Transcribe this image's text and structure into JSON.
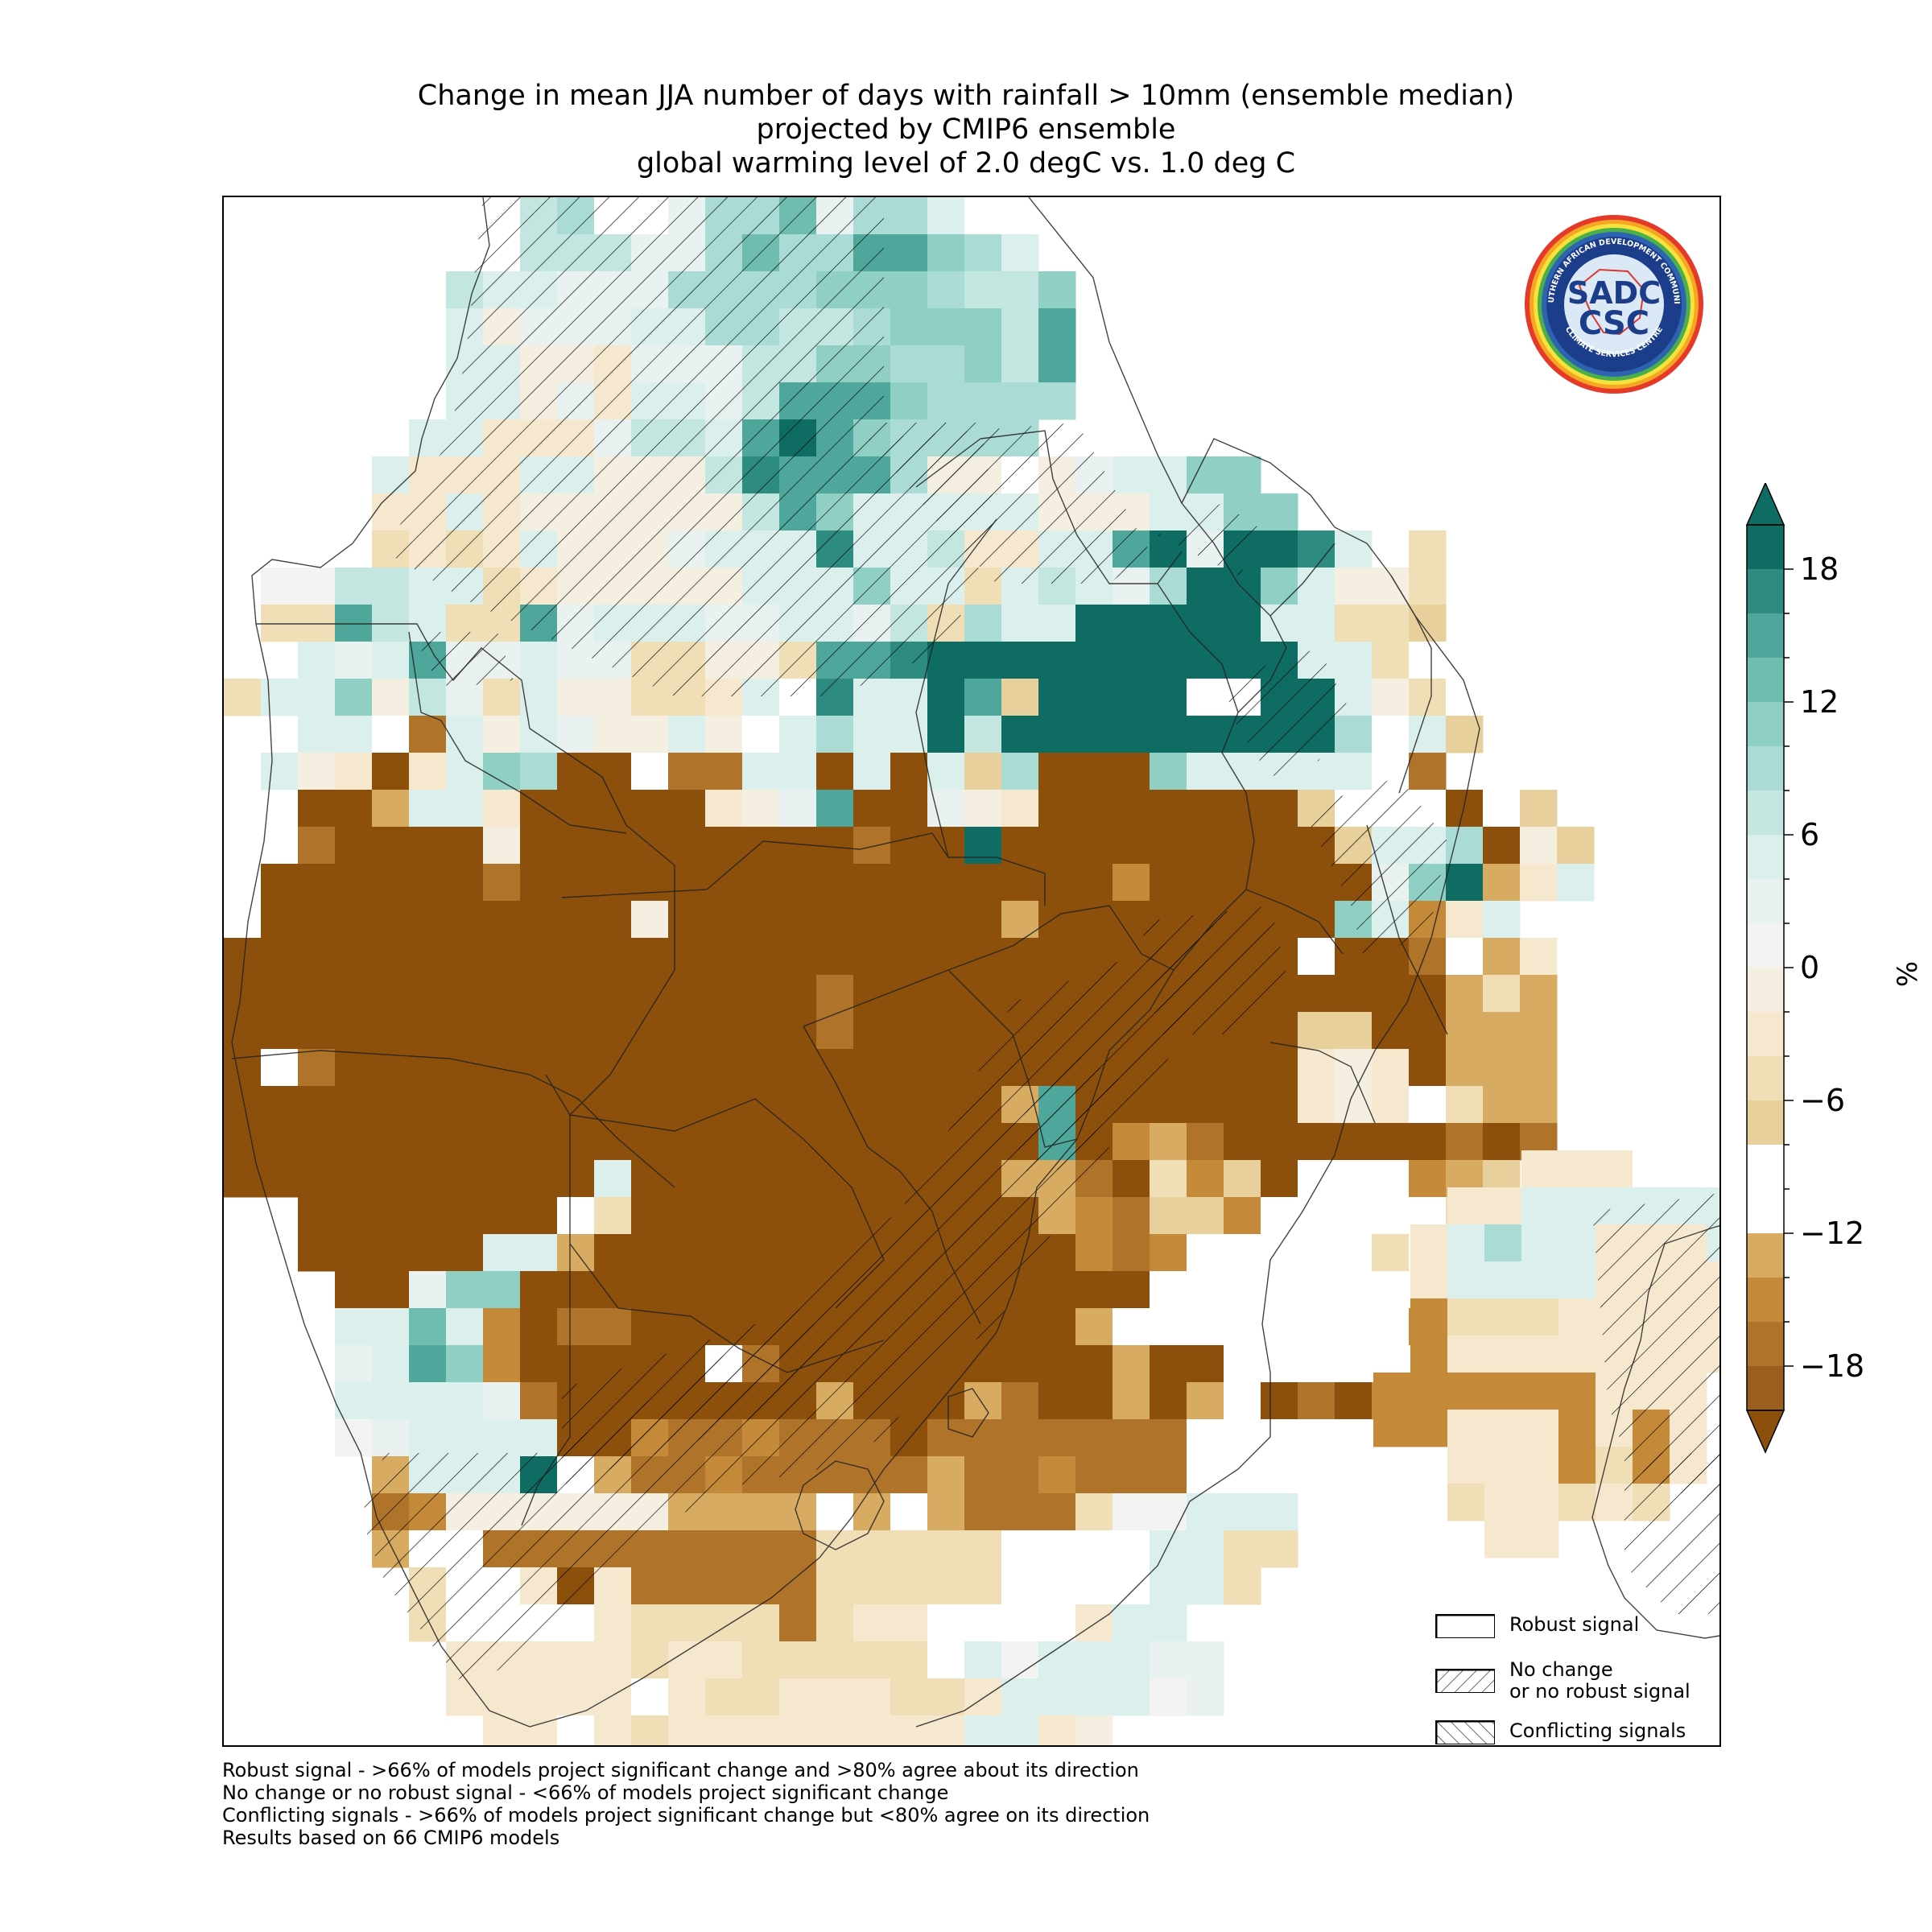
{
  "title": {
    "line1": "Change in mean JJA number of days with rainfall > 10mm (ensemble median)",
    "line2": "projected by CMIP6 ensemble",
    "line3": "global warming level of 2.0 degC vs. 1.0 deg C"
  },
  "logo": {
    "name": "sadc-csc-logo",
    "text_top": "SOUTHERN AFRICAN DEVELOPMENT COMMUNITY",
    "text_bottom": "CLIMATE SERVICES CENTRE",
    "mark_top": "SADC",
    "mark_bottom": "CSC"
  },
  "legend": [
    {
      "label": "Robust signal",
      "pattern": "none"
    },
    {
      "label": "No change\nor no robust signal",
      "pattern": "forward-hatch"
    },
    {
      "label": "Conflicting signals",
      "pattern": "back-hatch"
    }
  ],
  "colorbar": {
    "unit": "%",
    "ticks": [
      "18",
      "12",
      "6",
      "0",
      "−6",
      "−12",
      "−18"
    ],
    "tick_values": [
      18,
      12,
      6,
      0,
      -6,
      -12,
      -18
    ],
    "range": [
      -20,
      20
    ],
    "levels": [
      {
        "from": 18,
        "to": 20,
        "color": "#0e6c63"
      },
      {
        "from": 16,
        "to": 18,
        "color": "#2e8b7f"
      },
      {
        "from": 14,
        "to": 16,
        "color": "#4ea79a"
      },
      {
        "from": 12,
        "to": 14,
        "color": "#6fbcb0"
      },
      {
        "from": 10,
        "to": 12,
        "color": "#8fcfc4"
      },
      {
        "from": 8,
        "to": 10,
        "color": "#aadcd5"
      },
      {
        "from": 6,
        "to": 8,
        "color": "#c4e6e1"
      },
      {
        "from": 4,
        "to": 6,
        "color": "#dbefec"
      },
      {
        "from": 2,
        "to": 4,
        "color": "#e9f2f1"
      },
      {
        "from": 0,
        "to": 2,
        "color": "#f3f3f1"
      },
      {
        "from": -2,
        "to": 0,
        "color": "#f5efe2"
      },
      {
        "from": -4,
        "to": -2,
        "color": "#f5e8ce"
      },
      {
        "from": -6,
        "to": -4,
        "color": "#f0dfb6"
      },
      {
        "from": -8,
        "to": -6,
        "color": "#e8d09c"
      },
      {
        "from": -10,
        "to": -8,
        "color": "#ffffff"
      },
      {
        "from": -12,
        "to": -10,
        "color": "#ffffff"
      },
      {
        "from": -14,
        "to": -12,
        "color": "#d7ab62"
      },
      {
        "from": -16,
        "to": -14,
        "color": "#c48a3a"
      },
      {
        "from": -18,
        "to": -16,
        "color": "#b0732a"
      },
      {
        "from": -20,
        "to": -18,
        "color": "#9a5f1c"
      }
    ],
    "extend_max_color": "#0e6c63",
    "extend_min_color": "#8c500c"
  },
  "footnotes": [
    "Robust signal - >66% of models project significant change and >80% agree about its direction",
    "No change or no robust signal - <66% of models project significant change",
    "Conflicting signals - >66% of models project significant change but <80% agree on its direction",
    "Results based on 66 CMIP6 models"
  ],
  "map_colors": {
    "dry_strong": "#8c500c",
    "teal_strong": "#0e6c63"
  }
}
